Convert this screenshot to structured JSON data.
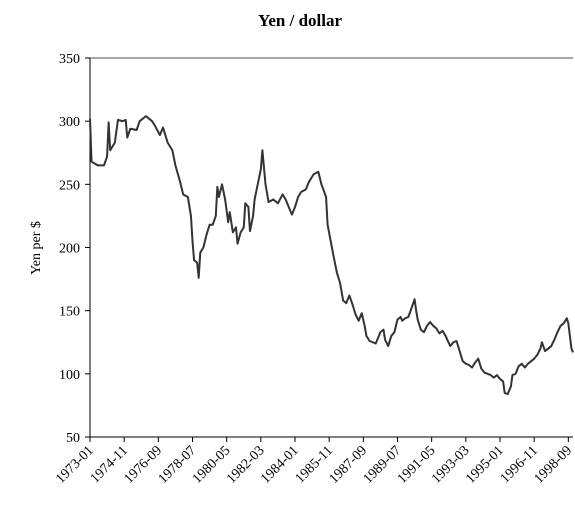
{
  "chart_data": {
    "type": "line",
    "title": "Yen / dollar",
    "y_label": "Yen per $",
    "x": [
      "1973-01",
      "1973-02",
      "1973-06",
      "1973-10",
      "1973-12",
      "1974-01",
      "1974-02",
      "1974-05",
      "1974-07",
      "1974-10",
      "1974-12",
      "1975-01",
      "1975-03",
      "1975-07",
      "1975-09",
      "1976-01",
      "1976-05",
      "1976-07",
      "1976-10",
      "1976-12",
      "1977-03",
      "1977-06",
      "1977-08",
      "1977-11",
      "1978-01",
      "1978-04",
      "1978-06",
      "1978-07",
      "1978-08",
      "1978-10",
      "1978-11",
      "1978-12",
      "1979-02",
      "1979-04",
      "1979-06",
      "1979-08",
      "1979-10",
      "1979-11",
      "1979-12",
      "1980-02",
      "1980-04",
      "1980-06",
      "1980-07",
      "1980-09",
      "1980-11",
      "1980-12",
      "1981-02",
      "1981-04",
      "1981-05",
      "1981-07",
      "1981-08",
      "1981-10",
      "1981-11",
      "1982-01",
      "1982-03",
      "1982-04",
      "1982-06",
      "1982-08",
      "1982-11",
      "1983-02",
      "1983-05",
      "1983-07",
      "1983-09",
      "1983-11",
      "1984-01",
      "1984-03",
      "1984-05",
      "1984-08",
      "1984-10",
      "1985-01",
      "1985-04",
      "1985-06",
      "1985-09",
      "1985-10",
      "1985-12",
      "1986-02",
      "1986-04",
      "1986-06",
      "1986-08",
      "1986-10",
      "1986-12",
      "1987-02",
      "1987-04",
      "1987-06",
      "1987-08",
      "1987-10",
      "1987-11",
      "1988-01",
      "1988-03",
      "1988-05",
      "1988-08",
      "1988-10",
      "1988-11",
      "1989-01",
      "1989-03",
      "1989-05",
      "1989-07",
      "1989-09",
      "1989-10",
      "1989-12",
      "1990-02",
      "1990-04",
      "1990-06",
      "1990-07",
      "1990-08",
      "1990-10",
      "1990-12",
      "1991-02",
      "1991-04",
      "1991-06",
      "1991-08",
      "1991-10",
      "1991-12",
      "1992-02",
      "1992-03",
      "1992-05",
      "1992-07",
      "1992-09",
      "1992-11",
      "1993-01",
      "1993-03",
      "1993-05",
      "1993-07",
      "1993-09",
      "1993-11",
      "1994-01",
      "1994-03",
      "1994-05",
      "1994-07",
      "1994-09",
      "1994-11",
      "1995-01",
      "1995-03",
      "1995-04",
      "1995-06",
      "1995-08",
      "1995-09",
      "1995-11",
      "1996-01",
      "1996-03",
      "1996-05",
      "1996-07",
      "1996-09",
      "1996-11",
      "1997-01",
      "1997-03",
      "1997-04",
      "1997-06",
      "1997-08",
      "1997-10",
      "1997-12",
      "1998-02",
      "1998-04",
      "1998-06",
      "1998-08",
      "1998-09",
      "1998-11",
      "1998-12"
    ],
    "values": [
      302,
      268,
      265,
      265,
      272,
      299,
      277,
      283,
      301,
      300,
      301,
      287,
      294,
      293,
      300,
      304,
      300,
      296,
      289,
      295,
      283,
      277,
      265,
      252,
      242,
      240,
      225,
      205,
      190,
      188,
      176,
      196,
      200,
      210,
      218,
      218,
      225,
      248,
      240,
      250,
      238,
      220,
      228,
      212,
      216,
      203,
      212,
      216,
      235,
      232,
      213,
      225,
      238,
      250,
      262,
      277,
      250,
      236,
      238,
      235,
      242,
      238,
      232,
      226,
      232,
      240,
      244,
      246,
      252,
      258,
      260,
      250,
      240,
      218,
      205,
      192,
      180,
      172,
      158,
      156,
      162,
      155,
      147,
      142,
      148,
      137,
      130,
      126,
      125,
      124,
      133,
      135,
      127,
      122,
      130,
      133,
      143,
      145,
      142,
      144,
      145,
      152,
      159,
      150,
      143,
      135,
      133,
      138,
      141,
      138,
      136,
      132,
      134,
      130,
      127,
      122,
      125,
      126,
      118,
      110,
      108,
      107,
      105,
      109,
      112,
      104,
      101,
      100,
      99,
      97,
      99,
      96,
      94,
      85,
      84,
      90,
      99,
      100,
      106,
      108,
      105,
      108,
      110,
      112,
      115,
      120,
      125,
      118,
      120,
      122,
      127,
      133,
      138,
      140,
      144,
      140,
      120,
      117
    ],
    "color": "#333333",
    "xlim": [
      "1973-01",
      "1998-12"
    ],
    "xticks": [
      "1973-01",
      "1974-11",
      "1976-09",
      "1978-07",
      "1980-05",
      "1982-03",
      "1984-01",
      "1985-11",
      "1987-09",
      "1989-07",
      "1991-05",
      "1993-03",
      "1995-01",
      "1996-11",
      "1998-09"
    ],
    "ylim": [
      50,
      350
    ],
    "yticks": [
      50,
      100,
      150,
      200,
      250,
      300,
      350
    ]
  }
}
